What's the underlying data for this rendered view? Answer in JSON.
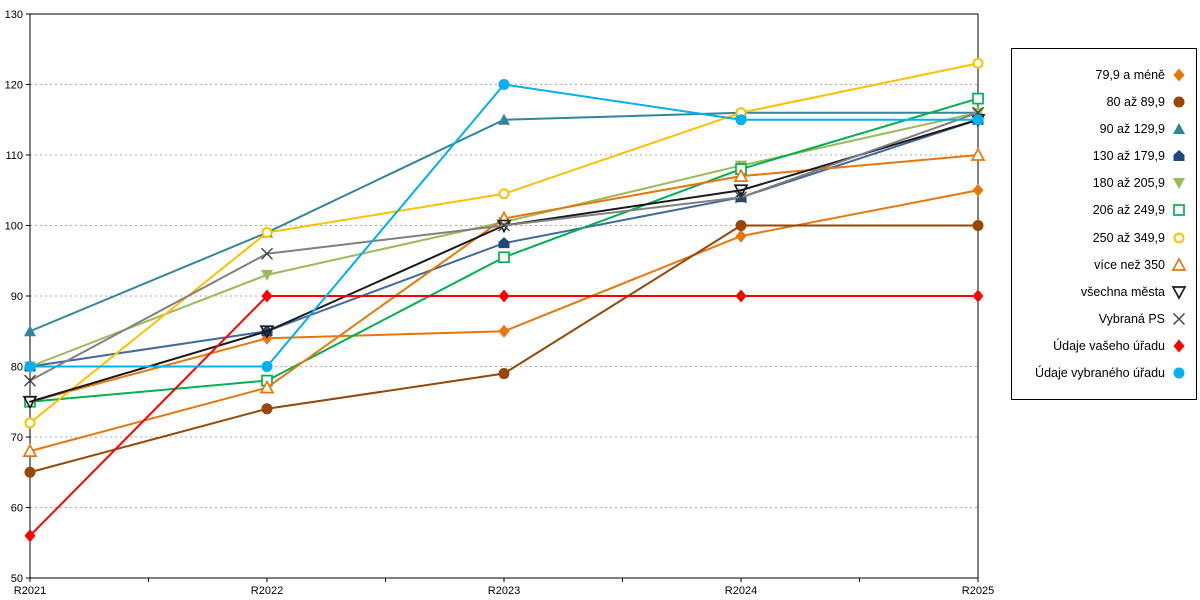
{
  "chart_data": {
    "type": "line",
    "title": "",
    "xlabel": "",
    "ylabel": "",
    "x_categories": [
      "R2021",
      "R2022",
      "R2023",
      "R2024",
      "R2025"
    ],
    "ylim": [
      50,
      130
    ],
    "ytick_step": 10,
    "grid": "horizontal-dashed",
    "legend_position": "right",
    "series": [
      {
        "name": "79,9 a méně",
        "color": "#E8760B",
        "marker": "diamond",
        "filled": true,
        "values": [
          75,
          84,
          85,
          98.5,
          105
        ]
      },
      {
        "name": "80 až 89,9",
        "color": "#974706",
        "marker": "circle",
        "filled": true,
        "values": [
          65,
          74,
          79,
          100,
          100
        ]
      },
      {
        "name": "90 až 129,9",
        "color": "#31859C",
        "marker": "triangle-up",
        "filled": true,
        "values": [
          85,
          99,
          115,
          116,
          116
        ]
      },
      {
        "name": "130 až 179,9",
        "color": "#41699C",
        "marker_color": "#1F497D",
        "marker": "pentagon",
        "filled": true,
        "values": [
          80,
          85,
          97.5,
          104,
          115
        ]
      },
      {
        "name": "180 až 205,9",
        "color": "#9BBB59",
        "marker": "triangle-down",
        "filled": true,
        "values": [
          80,
          93,
          100.5,
          108.5,
          116
        ]
      },
      {
        "name": "206 až 249,9",
        "color": "#00B050",
        "marker": "square",
        "filled": false,
        "open_fill": "#FFFFFF",
        "values": [
          75,
          78,
          95.5,
          108,
          118
        ]
      },
      {
        "name": "250 až 349,9",
        "color": "#FFC000",
        "marker": "circle",
        "filled": false,
        "open_fill": "#FFFFFF",
        "values": [
          72,
          99,
          104.5,
          116,
          123
        ]
      },
      {
        "name": "více než 350",
        "color": "#E8760B",
        "marker": "triangle-up",
        "filled": false,
        "open_fill": "#FFFFFF",
        "values": [
          68,
          77,
          101,
          107,
          110
        ]
      },
      {
        "name": "všechna města",
        "color": "#1A1A1A",
        "marker": "triangle-down",
        "filled": false,
        "open_fill": "none",
        "values": [
          75,
          85,
          100,
          105,
          115
        ]
      },
      {
        "name": "Vybraná PS",
        "color": "#808080",
        "marker_color": "#404040",
        "marker": "x",
        "filled": false,
        "values": [
          78,
          96,
          100,
          104,
          116
        ]
      },
      {
        "name": "Údaje vašeho úřadu",
        "color": "#FF0000",
        "marker": "diamond",
        "filled": true,
        "values": [
          56,
          90,
          90,
          90,
          90
        ]
      },
      {
        "name": "Údaje vybraného úřadu",
        "color": "#00B0F0",
        "marker": "circle",
        "filled": true,
        "values": [
          80,
          80,
          120,
          115,
          115
        ]
      }
    ],
    "colors": {
      "grid": "#ADADAD",
      "axis": "#000000"
    }
  }
}
